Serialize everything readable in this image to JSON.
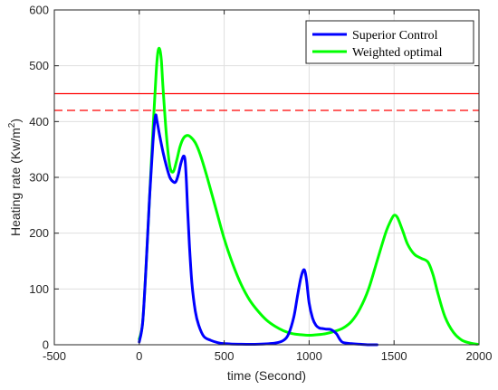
{
  "chart_data": {
    "type": "line",
    "title": "",
    "xlabel": "time (Second)",
    "ylabel_main": "Heating rate (Kw/m",
    "ylabel_sup": "2",
    "ylabel_end": ")",
    "xlim": [
      -500,
      2000
    ],
    "ylim": [
      0,
      600
    ],
    "xticks": [
      -500,
      0,
      500,
      1000,
      1500,
      2000
    ],
    "yticks": [
      0,
      100,
      200,
      300,
      400,
      500,
      600
    ],
    "grid": true,
    "legend_position": "top-right",
    "series": [
      {
        "name": "Superior Control",
        "color": "#0000ff",
        "x": [
          0,
          20,
          40,
          60,
          80,
          95,
          105,
          120,
          140,
          160,
          180,
          200,
          215,
          230,
          245,
          260,
          270,
          278,
          285,
          295,
          310,
          330,
          350,
          380,
          420,
          460,
          500,
          600,
          700,
          800,
          850,
          880,
          910,
          930,
          950,
          965,
          975,
          985,
          1000,
          1020,
          1040,
          1060,
          1080,
          1100,
          1130,
          1160,
          1180,
          1200,
          1250,
          1300,
          1350,
          1400
        ],
        "y": [
          5,
          40,
          140,
          260,
          360,
          410,
          400,
          375,
          345,
          320,
          300,
          292,
          292,
          305,
          325,
          338,
          330,
          290,
          240,
          180,
          110,
          60,
          35,
          15,
          8,
          4,
          2,
          1,
          1,
          3,
          8,
          20,
          50,
          85,
          118,
          133,
          132,
          115,
          75,
          48,
          35,
          30,
          29,
          28,
          27,
          20,
          10,
          4,
          2,
          1,
          0,
          0
        ]
      },
      {
        "name": "Weighted optimal",
        "color": "#00ff00",
        "x": [
          0,
          20,
          40,
          60,
          80,
          100,
          110,
          120,
          130,
          140,
          160,
          180,
          200,
          220,
          240,
          260,
          280,
          300,
          330,
          360,
          400,
          450,
          500,
          550,
          600,
          650,
          700,
          750,
          800,
          850,
          900,
          950,
          1000,
          1050,
          1100,
          1150,
          1200,
          1250,
          1300,
          1350,
          1400,
          1450,
          1480,
          1500,
          1520,
          1550,
          1580,
          1620,
          1660,
          1700,
          1730,
          1760,
          1800,
          1850,
          1900,
          1950,
          1990
        ],
        "y": [
          10,
          40,
          140,
          260,
          380,
          490,
          525,
          530,
          510,
          460,
          375,
          320,
          310,
          330,
          355,
          370,
          375,
          373,
          362,
          340,
          300,
          245,
          190,
          145,
          108,
          80,
          60,
          44,
          33,
          25,
          20,
          18,
          17,
          18,
          20,
          24,
          30,
          42,
          65,
          100,
          150,
          200,
          222,
          232,
          228,
          205,
          180,
          162,
          155,
          148,
          125,
          90,
          50,
          22,
          8,
          3,
          1
        ]
      }
    ],
    "reference_lines": [
      {
        "y": 450,
        "color": "#ff0000",
        "style": "solid"
      },
      {
        "y": 420,
        "color": "#ff0000",
        "style": "dashed"
      }
    ]
  }
}
